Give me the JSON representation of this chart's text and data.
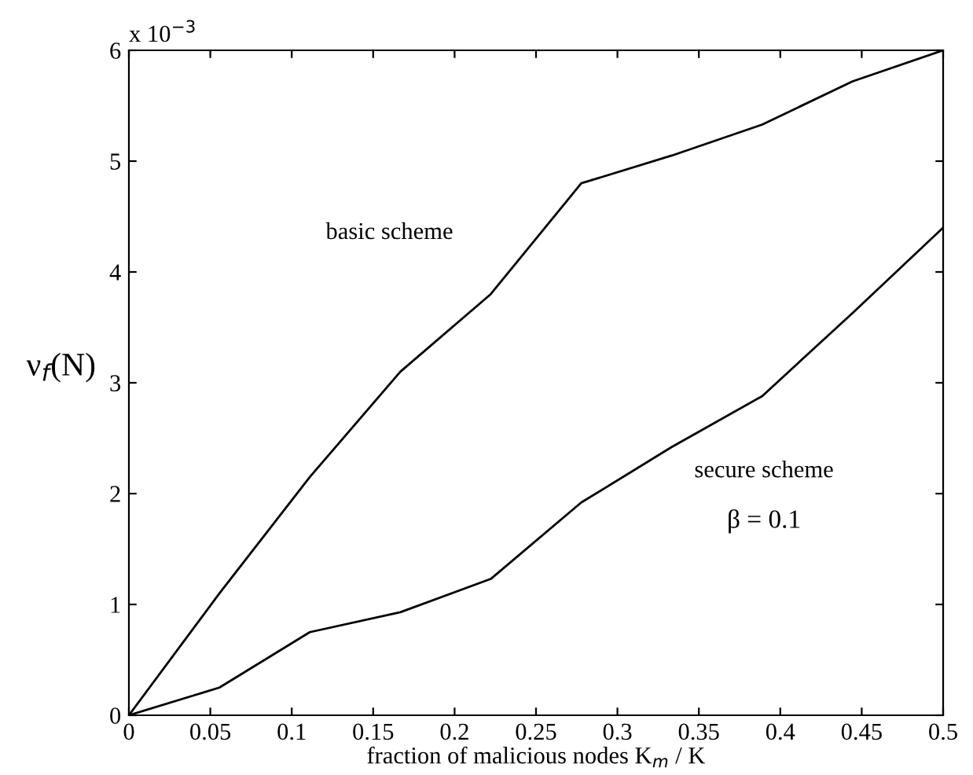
{
  "chart_data": {
    "type": "line",
    "xlabel": "fraction of malicious nodes K$_{m}$ / K",
    "ylabel": "ν$_{f}$(N)",
    "x": [
      0,
      0.0556,
      0.1111,
      0.1667,
      0.2222,
      0.2778,
      0.3333,
      0.3889,
      0.4444,
      0.5
    ],
    "series": [
      {
        "name": "basic scheme",
        "color": "#000000",
        "values": [
          0,
          1.1,
          2.15,
          3.1,
          3.8,
          4.8,
          5.05,
          5.33,
          5.72,
          6.0
        ]
      },
      {
        "name": "secure scheme",
        "color": "#000000",
        "values": [
          0,
          0.25,
          0.75,
          0.93,
          1.23,
          1.92,
          2.42,
          2.88,
          3.63,
          4.4
        ]
      }
    ],
    "annotations": [
      "x 10$^{−3}$",
      "β = 0.1"
    ],
    "xlim": [
      0,
      0.5
    ],
    "ylim": [
      0,
      6
    ],
    "xticks": [
      0,
      0.05,
      0.1,
      0.15,
      0.2,
      0.25,
      0.3,
      0.35,
      0.4,
      0.45,
      0.5
    ],
    "yticks": [
      0,
      1,
      2,
      3,
      4,
      5,
      6
    ],
    "grid": false,
    "legend": false,
    "marker": "none",
    "line_style": "solid"
  }
}
